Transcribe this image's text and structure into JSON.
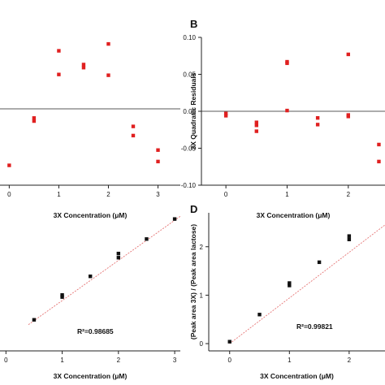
{
  "chart_data": [
    {
      "panel": "",
      "type": "scatter",
      "title": "",
      "xlabel": "3X Concentration (μM)",
      "ylabel": "",
      "xlim": [
        -0.35,
        3.45
      ],
      "ylim": [
        -0.1,
        0.1
      ],
      "xticks": [
        0,
        1,
        2,
        3
      ],
      "xtick_labels": [
        "0",
        "1",
        "2",
        "3"
      ],
      "yticks": [],
      "ytick_labels": [],
      "zero_line": true,
      "marker_color": "#e02020",
      "points": [
        {
          "x": 0,
          "y": -0.074
        },
        {
          "x": 0.5,
          "y": -0.012
        },
        {
          "x": 0.5,
          "y": -0.016
        },
        {
          "x": 1,
          "y": 0.076
        },
        {
          "x": 1,
          "y": 0.045
        },
        {
          "x": 1.5,
          "y": 0.058
        },
        {
          "x": 1.5,
          "y": 0.054
        },
        {
          "x": 2,
          "y": 0.085
        },
        {
          "x": 2,
          "y": 0.044
        },
        {
          "x": 2.5,
          "y": -0.023
        },
        {
          "x": 2.5,
          "y": -0.035
        },
        {
          "x": 3,
          "y": -0.054
        },
        {
          "x": 3,
          "y": -0.069
        }
      ]
    },
    {
      "panel": "B",
      "type": "scatter",
      "title": "",
      "xlabel": "3X Concentration (μM)",
      "ylabel": "3X Quadratic Residuals",
      "xlim": [
        -0.4,
        2.6
      ],
      "ylim": [
        -0.1,
        0.1
      ],
      "xticks": [
        0,
        1,
        2
      ],
      "xtick_labels": [
        "0",
        "1",
        "2"
      ],
      "yticks": [
        -0.1,
        -0.05,
        0,
        0.05,
        0.1
      ],
      "ytick_labels": [
        "-0.10",
        "-0.05",
        "0.00",
        "0.05",
        "0.10"
      ],
      "zero_line": true,
      "marker_color": "#e02020",
      "points": [
        {
          "x": 0,
          "y": -0.003
        },
        {
          "x": 0,
          "y": -0.006
        },
        {
          "x": 0.5,
          "y": -0.015
        },
        {
          "x": 0.5,
          "y": -0.019
        },
        {
          "x": 0.5,
          "y": -0.027
        },
        {
          "x": 1,
          "y": 0.065
        },
        {
          "x": 1,
          "y": 0.067
        },
        {
          "x": 1,
          "y": 0.001
        },
        {
          "x": 1.5,
          "y": -0.009
        },
        {
          "x": 1.5,
          "y": -0.018
        },
        {
          "x": 2,
          "y": 0.077
        },
        {
          "x": 2,
          "y": -0.005
        },
        {
          "x": 2,
          "y": -0.007
        },
        {
          "x": 2.5,
          "y": -0.045
        },
        {
          "x": 2.5,
          "y": -0.068
        }
      ]
    },
    {
      "panel": "",
      "type": "scatter",
      "title": "",
      "xlabel": "3X Concentration (μM)",
      "ylabel": "",
      "xlim": [
        -0.25,
        3.1
      ],
      "ylim": [
        0,
        1
      ],
      "xticks": [
        0,
        1,
        2,
        3
      ],
      "xtick_labels": [
        "0",
        "1",
        "2",
        "3"
      ],
      "yticks": [],
      "ytick_labels": [],
      "annotation": "R²=0.98685",
      "marker_color": "#111111",
      "fit_color": "#e57373",
      "fit_line": {
        "x": [
          0.4,
          3.1
        ],
        "y": [
          0.19,
          0.975
        ]
      },
      "points": [
        {
          "x": 0.5,
          "y": 0.225
        },
        {
          "x": 1,
          "y": 0.39
        },
        {
          "x": 1,
          "y": 0.405
        },
        {
          "x": 1.5,
          "y": 0.54
        },
        {
          "x": 2,
          "y": 0.675
        },
        {
          "x": 2,
          "y": 0.705
        },
        {
          "x": 2.5,
          "y": 0.81
        },
        {
          "x": 3,
          "y": 0.955
        }
      ]
    },
    {
      "panel": "D",
      "type": "scatter",
      "title": "",
      "xlabel": "3X Concentration (μM)",
      "ylabel": "(Peak area 3X) / (Peak area lactose)",
      "xlim": [
        -0.35,
        2.6
      ],
      "ylim": [
        -0.15,
        2.7
      ],
      "xticks": [
        0,
        1,
        2
      ],
      "xtick_labels": [
        "0",
        "1",
        "2"
      ],
      "yticks": [
        0,
        1,
        2
      ],
      "ytick_labels": [
        "0",
        "1",
        "2"
      ],
      "annotation": "R²=0.99821",
      "marker_color": "#111111",
      "fit_color": "#e57373",
      "fit_line": {
        "x": [
          0,
          2.6
        ],
        "y": [
          0.0,
          2.45
        ]
      },
      "points": [
        {
          "x": 0,
          "y": 0.04
        },
        {
          "x": 0.5,
          "y": 0.6
        },
        {
          "x": 1,
          "y": 1.2
        },
        {
          "x": 1,
          "y": 1.25
        },
        {
          "x": 1.5,
          "y": 1.68
        },
        {
          "x": 2,
          "y": 2.15
        },
        {
          "x": 2,
          "y": 2.22
        }
      ]
    }
  ]
}
